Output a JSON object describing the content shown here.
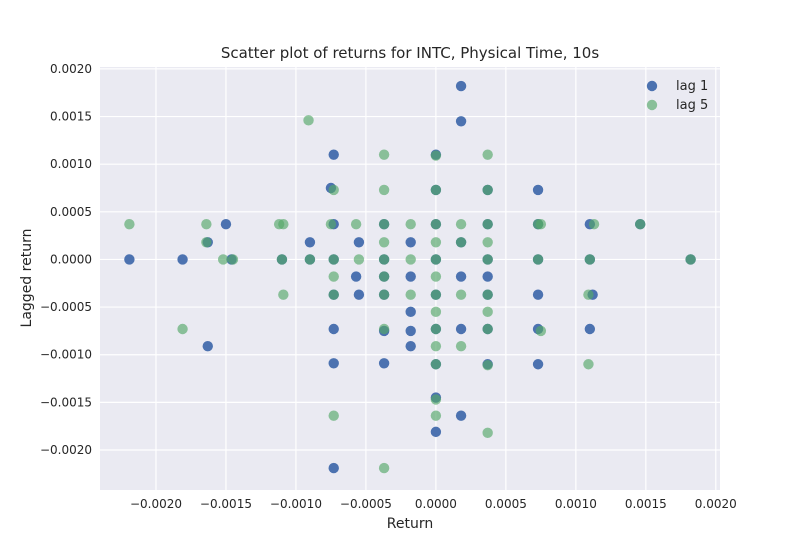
{
  "chart_data": {
    "type": "scatter",
    "title": "Scatter plot of returns for INTC, Physical Time, 10s",
    "xlabel": "Return",
    "ylabel": "Lagged return",
    "xlim": [
      -0.0024,
      0.00203
    ],
    "ylim": [
      -0.00242,
      0.00202
    ],
    "x_ticks": [
      -0.002,
      -0.0015,
      -0.001,
      -0.0005,
      0.0,
      0.0005,
      0.001,
      0.0015,
      0.002
    ],
    "x_tick_labels": [
      "−0.0020",
      "−0.0015",
      "−0.0010",
      "−0.0005",
      "0.0000",
      "0.0005",
      "0.0010",
      "0.0015",
      "0.0020"
    ],
    "y_ticks": [
      -0.002,
      -0.0015,
      -0.001,
      -0.0005,
      0.0,
      0.0005,
      0.001,
      0.0015,
      0.002
    ],
    "y_tick_labels": [
      "−0.0020",
      "−0.0015",
      "−0.0010",
      "−0.0005",
      "0.0000",
      "0.0005",
      "0.0010",
      "0.0015",
      "0.0020"
    ],
    "grid": true,
    "background": "#eaeaf2",
    "legend_position": "top-right",
    "series": [
      {
        "name": "lag 1",
        "color": "#4c72b0",
        "points": [
          [
            -0.00219,
            0.0
          ],
          [
            -0.00181,
            0.0
          ],
          [
            -0.00163,
            0.00018
          ],
          [
            -0.00163,
            -0.00091
          ],
          [
            -0.0015,
            0.00037
          ],
          [
            -0.00146,
            0.0
          ],
          [
            -0.0011,
            0.0
          ],
          [
            -0.0009,
            0.00018
          ],
          [
            -0.0009,
            0.0
          ],
          [
            -0.00073,
            0.0011
          ],
          [
            -0.00075,
            0.00075
          ],
          [
            -0.00073,
            0.00037
          ],
          [
            -0.00073,
            0.0
          ],
          [
            -0.00073,
            -0.00037
          ],
          [
            -0.00073,
            -0.00073
          ],
          [
            -0.00073,
            -0.00109
          ],
          [
            -0.00073,
            -0.00219
          ],
          [
            -0.00055,
            0.00018
          ],
          [
            -0.00057,
            -0.00018
          ],
          [
            -0.00055,
            -0.00037
          ],
          [
            -0.00037,
            0.00037
          ],
          [
            -0.00037,
            0.0
          ],
          [
            -0.00037,
            -0.00018
          ],
          [
            -0.00037,
            -0.00037
          ],
          [
            -0.00037,
            -0.00075
          ],
          [
            -0.00037,
            -0.00109
          ],
          [
            -0.00018,
            0.00018
          ],
          [
            -0.00018,
            -0.00018
          ],
          [
            -0.00018,
            -0.00055
          ],
          [
            -0.00018,
            -0.00075
          ],
          [
            -0.00018,
            -0.00091
          ],
          [
            0.0,
            0.0011
          ],
          [
            0.0,
            0.00073
          ],
          [
            0.0,
            0.00037
          ],
          [
            0.0,
            0.0
          ],
          [
            0.0,
            -0.00037
          ],
          [
            0.0,
            -0.00073
          ],
          [
            0.0,
            -0.0011
          ],
          [
            0.0,
            -0.00145
          ],
          [
            0.0,
            -0.00181
          ],
          [
            0.00018,
            0.00182
          ],
          [
            0.00018,
            0.00145
          ],
          [
            0.00018,
            0.00018
          ],
          [
            0.00018,
            -0.00018
          ],
          [
            0.00018,
            -0.00073
          ],
          [
            0.00018,
            -0.00164
          ],
          [
            0.00037,
            0.00073
          ],
          [
            0.00037,
            0.00037
          ],
          [
            0.00037,
            0.0
          ],
          [
            0.00037,
            -0.00018
          ],
          [
            0.00037,
            -0.00037
          ],
          [
            0.00037,
            -0.00073
          ],
          [
            0.00037,
            -0.0011
          ],
          [
            0.00073,
            0.00073
          ],
          [
            0.00073,
            0.00037
          ],
          [
            0.00073,
            0.0
          ],
          [
            0.00073,
            -0.00037
          ],
          [
            0.00073,
            -0.00073
          ],
          [
            0.00073,
            -0.0011
          ],
          [
            0.0011,
            0.00037
          ],
          [
            0.0011,
            0.0
          ],
          [
            0.0011,
            -0.00073
          ],
          [
            0.00112,
            -0.00037
          ],
          [
            0.00146,
            0.00037
          ],
          [
            0.00182,
            0.0
          ]
        ]
      },
      {
        "name": "lag 5",
        "color": "#55a868",
        "points": [
          [
            -0.00219,
            0.00037
          ],
          [
            -0.00181,
            -0.00073
          ],
          [
            -0.00164,
            0.00037
          ],
          [
            -0.00164,
            0.00018
          ],
          [
            -0.00152,
            0.0
          ],
          [
            -0.00145,
            0.0
          ],
          [
            -0.00112,
            0.00037
          ],
          [
            -0.00109,
            0.00037
          ],
          [
            -0.0011,
            0.0
          ],
          [
            -0.00109,
            -0.00037
          ],
          [
            -0.00091,
            0.00146
          ],
          [
            -0.0009,
            0.0
          ],
          [
            -0.00075,
            0.00037
          ],
          [
            -0.00073,
            0.00073
          ],
          [
            -0.00073,
            0.0
          ],
          [
            -0.00073,
            -0.00018
          ],
          [
            -0.00073,
            -0.00037
          ],
          [
            -0.00073,
            -0.00164
          ],
          [
            -0.00057,
            0.00037
          ],
          [
            -0.00055,
            0.0
          ],
          [
            -0.00037,
            0.0011
          ],
          [
            -0.00037,
            0.00073
          ],
          [
            -0.00037,
            0.00037
          ],
          [
            -0.00037,
            0.00018
          ],
          [
            -0.00037,
            0.0
          ],
          [
            -0.00037,
            -0.00018
          ],
          [
            -0.00037,
            -0.00037
          ],
          [
            -0.00037,
            -0.00073
          ],
          [
            -0.00037,
            -0.00219
          ],
          [
            -0.00018,
            0.00037
          ],
          [
            -0.00018,
            0.0
          ],
          [
            -0.00018,
            -0.00037
          ],
          [
            0.0,
            0.00109
          ],
          [
            0.0,
            0.00073
          ],
          [
            0.0,
            0.00037
          ],
          [
            0.0,
            0.00018
          ],
          [
            0.0,
            0.0
          ],
          [
            0.0,
            -0.00018
          ],
          [
            0.0,
            -0.00037
          ],
          [
            0.0,
            -0.00055
          ],
          [
            0.0,
            -0.00073
          ],
          [
            0.0,
            -0.00091
          ],
          [
            0.0,
            -0.0011
          ],
          [
            0.0,
            -0.00147
          ],
          [
            0.0,
            -0.00164
          ],
          [
            0.00018,
            0.00037
          ],
          [
            0.00018,
            0.00018
          ],
          [
            0.00018,
            -0.00037
          ],
          [
            0.00018,
            -0.00091
          ],
          [
            0.00037,
            0.0011
          ],
          [
            0.00037,
            0.00073
          ],
          [
            0.00037,
            0.00037
          ],
          [
            0.00037,
            0.00018
          ],
          [
            0.00037,
            0.0
          ],
          [
            0.00037,
            -0.00037
          ],
          [
            0.00037,
            -0.00055
          ],
          [
            0.00037,
            -0.00073
          ],
          [
            0.00037,
            -0.00111
          ],
          [
            0.00037,
            -0.00182
          ],
          [
            0.00073,
            0.00037
          ],
          [
            0.00075,
            0.00037
          ],
          [
            0.00073,
            0.0
          ],
          [
            0.00075,
            -0.00075
          ],
          [
            0.0011,
            0.0
          ],
          [
            0.00109,
            -0.00037
          ],
          [
            0.00113,
            0.00037
          ],
          [
            0.00109,
            -0.0011
          ],
          [
            0.00146,
            0.00037
          ],
          [
            0.00182,
            0.0
          ]
        ]
      }
    ]
  }
}
